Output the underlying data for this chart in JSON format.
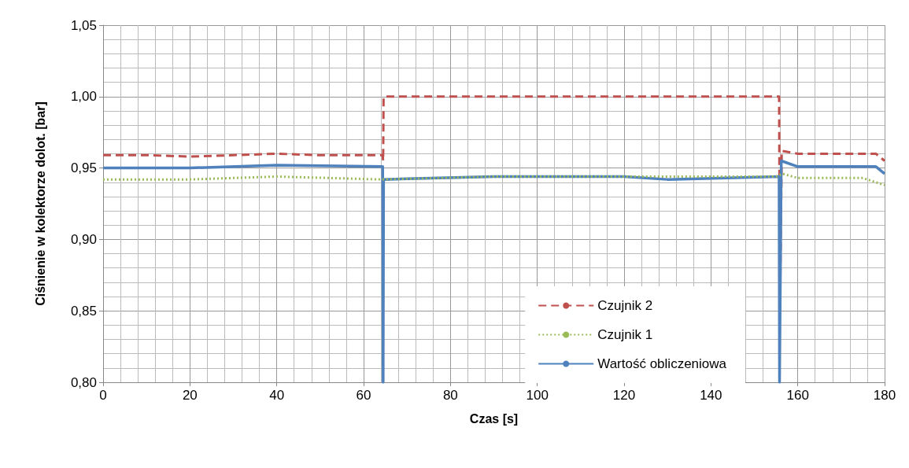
{
  "chart_data": {
    "type": "line",
    "xlabel": "Czas [s]",
    "ylabel": "Ciśnienie w kolektorze dolot. [bar]",
    "xlim": [
      0,
      180
    ],
    "xticks": [
      0,
      20,
      40,
      60,
      80,
      100,
      120,
      140,
      160,
      180
    ],
    "ylim": [
      0.8,
      1.05
    ],
    "yticks": [
      {
        "value": 0.8,
        "label": "0,80"
      },
      {
        "value": 0.85,
        "label": "0,85"
      },
      {
        "value": 0.9,
        "label": "0,90"
      },
      {
        "value": 0.95,
        "label": "0,95"
      },
      {
        "value": 1.0,
        "label": "1,00"
      },
      {
        "value": 1.05,
        "label": "1,05"
      }
    ],
    "grid": true,
    "legend": "bottom right",
    "marker": "none",
    "series": [
      {
        "name": "Czujnik 2",
        "color": "#c0504d",
        "line_style": "dashed",
        "x": [
          0,
          10,
          20,
          30,
          40,
          50,
          60,
          64.4,
          64.5,
          64.6,
          100,
          155.7,
          155.9,
          156.3,
          160,
          170,
          178,
          180
        ],
        "values": [
          0.959,
          0.959,
          0.958,
          0.959,
          0.96,
          0.959,
          0.959,
          0.959,
          0.955,
          1.0,
          1.0,
          1.0,
          0.85,
          0.962,
          0.96,
          0.96,
          0.96,
          0.955
        ]
      },
      {
        "name": "Czujnik 1",
        "color": "#9bbb59",
        "line_style": "dotted",
        "x": [
          0,
          20,
          40,
          64,
          90,
          120,
          155,
          156.5,
          160,
          175,
          180
        ],
        "values": [
          0.942,
          0.942,
          0.944,
          0.942,
          0.944,
          0.944,
          0.944,
          0.946,
          0.943,
          0.943,
          0.938
        ]
      },
      {
        "name": "Wartość obliczeniowa",
        "color": "#4f81bd",
        "line_style": "solid",
        "x": [
          0,
          20,
          40,
          64.4,
          64.5,
          64.6,
          90,
          120,
          130,
          155.7,
          155.8,
          156.2,
          160,
          170,
          178,
          180
        ],
        "values": [
          0.95,
          0.95,
          0.952,
          0.951,
          0.8,
          0.942,
          0.944,
          0.944,
          0.942,
          0.944,
          0.8,
          0.955,
          0.951,
          0.951,
          0.951,
          0.946
        ]
      }
    ]
  }
}
